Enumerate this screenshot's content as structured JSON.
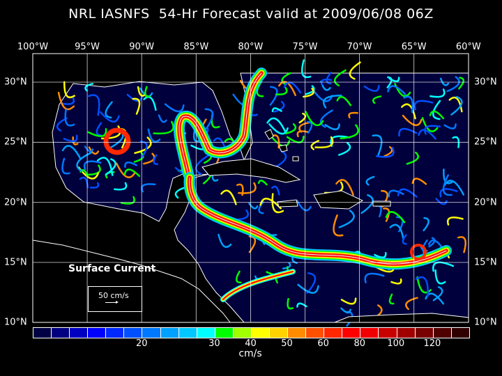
{
  "title": "NRL IASNFS  54-Hr Forecast valid at 2009/06/08 06Z",
  "lon_labels": [
    "100°W",
    "95°W",
    "90°W",
    "85°W",
    "80°W",
    "75°W",
    "70°W",
    "65°W",
    "60°W"
  ],
  "lat_labels": [
    "30°N",
    "25°N",
    "20°N",
    "15°N",
    "10°N"
  ],
  "legend": {
    "title": "Surface Current",
    "reference_vector": "50 cm/s",
    "units": "cm/s",
    "tick_labels": [
      "20",
      "30",
      "40",
      "50",
      "60",
      "80",
      "100",
      "120"
    ],
    "colors": [
      "#000044",
      "#000080",
      "#0000c0",
      "#0000ff",
      "#0028ff",
      "#0050ff",
      "#0078ff",
      "#00a0ff",
      "#00c8ff",
      "#00ffff",
      "#00ff00",
      "#a0ff00",
      "#ffff00",
      "#ffd200",
      "#ff8c00",
      "#ff5000",
      "#ff2800",
      "#ff0000",
      "#f00000",
      "#c80000",
      "#a00000",
      "#780000",
      "#500000",
      "#300000"
    ]
  },
  "colors": {
    "ocean": "#00003c",
    "land": "#000000",
    "coast": "#ffffff"
  }
}
